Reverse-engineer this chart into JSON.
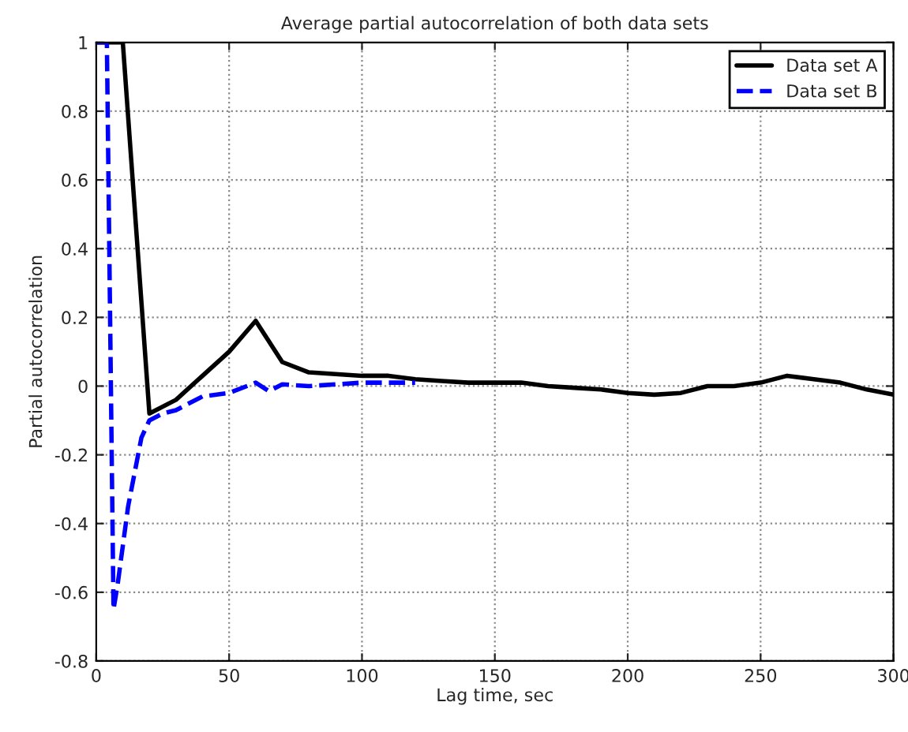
{
  "chart_data": {
    "type": "line",
    "title": "Average partial autocorrelation of both data sets",
    "xlabel": "Lag time, sec",
    "ylabel": "Partial autocorrelation",
    "series": [
      {
        "name": "Data set A",
        "color": "#000000",
        "line_style": "solid",
        "x": [
          0,
          10,
          20,
          30,
          40,
          50,
          60,
          70,
          80,
          90,
          100,
          110,
          120,
          130,
          140,
          150,
          160,
          170,
          180,
          190,
          200,
          210,
          220,
          230,
          240,
          250,
          260,
          270,
          280,
          290,
          300
        ],
        "values": [
          1,
          1,
          -0.08,
          -0.04,
          0.03,
          0.1,
          0.19,
          0.07,
          0.04,
          0.035,
          0.03,
          0.03,
          0.02,
          0.015,
          0.01,
          0.01,
          0.01,
          0,
          -0.005,
          -0.01,
          -0.02,
          -0.025,
          -0.02,
          0,
          0,
          0.01,
          0.03,
          0.02,
          0.01,
          -0.01,
          -0.025
        ]
      },
      {
        "name": "Data set B",
        "color": "#0000ff",
        "line_style": "dashed",
        "x": [
          0,
          4,
          6.5,
          8,
          12,
          17,
          20,
          25,
          30,
          40,
          50,
          60,
          65,
          70,
          80,
          90,
          100,
          110,
          120
        ],
        "values": [
          1,
          1,
          -0.65,
          -0.58,
          -0.35,
          -0.15,
          -0.1,
          -0.08,
          -0.07,
          -0.03,
          -0.02,
          0.01,
          -0.015,
          0.005,
          0,
          0.005,
          0.01,
          0.01,
          0.01
        ]
      }
    ],
    "xlim": [
      0,
      300
    ],
    "xticks": [
      0,
      50,
      100,
      150,
      200,
      250,
      300
    ],
    "ylim": [
      -0.8,
      1
    ],
    "yticks": [
      -0.8,
      -0.6,
      -0.4,
      -0.2,
      0,
      0.2,
      0.4,
      0.6,
      0.8,
      1
    ],
    "grid": true,
    "legend": "top right"
  }
}
